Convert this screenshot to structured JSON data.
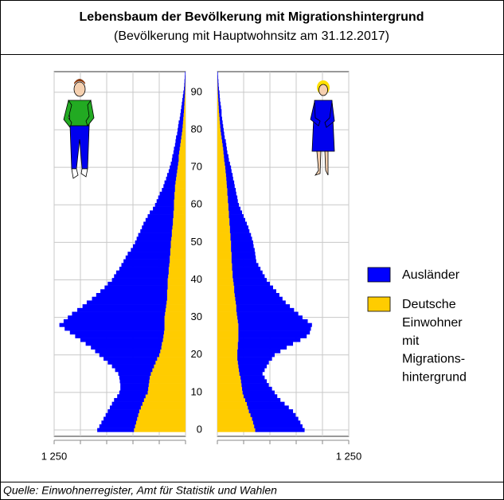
{
  "chart_data": {
    "type": "pyramid",
    "title": "Lebensbaum der Bevölkerung mit Migrationshintergrund",
    "subtitle": "(Bevölkerung mit Hauptwohnsitz am 31.12.2017)",
    "source": "Quelle: Einwohnerregister, Amt für Statistik und Wahlen",
    "y": [
      0,
      1,
      2,
      3,
      4,
      5,
      6,
      7,
      8,
      9,
      10,
      11,
      12,
      13,
      14,
      15,
      16,
      17,
      18,
      19,
      20,
      21,
      22,
      23,
      24,
      25,
      26,
      27,
      28,
      29,
      30,
      31,
      32,
      33,
      34,
      35,
      36,
      37,
      38,
      39,
      40,
      41,
      42,
      43,
      44,
      45,
      46,
      47,
      48,
      49,
      50,
      51,
      52,
      53,
      54,
      55,
      56,
      57,
      58,
      59,
      60,
      61,
      62,
      63,
      64,
      65,
      66,
      67,
      68,
      69,
      70,
      71,
      72,
      73,
      74,
      75,
      76,
      77,
      78,
      79,
      80,
      81,
      82,
      83,
      84,
      85,
      86,
      87,
      88,
      89,
      90,
      91,
      92,
      93,
      94,
      95
    ],
    "ylim": [
      -1.7,
      95.5
    ],
    "yticks": [
      0,
      10,
      20,
      30,
      40,
      50,
      60,
      70,
      80,
      90
    ],
    "xlim": [
      0,
      1250
    ],
    "xgrid": [
      0,
      250,
      500,
      750,
      1000,
      1250
    ],
    "xticks": [
      {
        "value": 1250,
        "label": "1 250"
      }
    ],
    "series": [
      {
        "name": "Ausländer",
        "color": "#0000ff",
        "left": [
          350,
          340,
          330,
          320,
          310,
          300,
          295,
          290,
          285,
          270,
          270,
          265,
          270,
          280,
          290,
          310,
          355,
          400,
          455,
          510,
          570,
          620,
          670,
          725,
          785,
          840,
          895,
          950,
          1000,
          960,
          920,
          885,
          840,
          795,
          760,
          715,
          675,
          635,
          600,
          570,
          530,
          515,
          500,
          470,
          455,
          440,
          420,
          405,
          375,
          360,
          340,
          330,
          320,
          300,
          290,
          280,
          260,
          245,
          225,
          200,
          180,
          165,
          155,
          140,
          125,
          110,
          105,
          95,
          90,
          80,
          75,
          70,
          65,
          60,
          55,
          55,
          50,
          50,
          50,
          45,
          45,
          43,
          41,
          34,
          32,
          30,
          27,
          24,
          21,
          18,
          15,
          11,
          9,
          8,
          6,
          5
        ],
        "right": [
          470,
          460,
          450,
          440,
          430,
          420,
          390,
          360,
          335,
          320,
          305,
          285,
          260,
          245,
          230,
          220,
          245,
          270,
          295,
          330,
          355,
          410,
          465,
          525,
          590,
          650,
          680,
          690,
          700,
          665,
          620,
          585,
          550,
          510,
          475,
          450,
          425,
          400,
          370,
          345,
          320,
          305,
          285,
          270,
          250,
          235,
          230,
          225,
          225,
          215,
          210,
          205,
          195,
          185,
          175,
          165,
          150,
          140,
          125,
          115,
          100,
          95,
          90,
          85,
          80,
          75,
          72,
          65,
          63,
          57,
          55,
          50,
          45,
          43,
          37,
          35,
          35,
          35,
          30,
          30,
          30,
          28,
          26,
          24,
          22,
          25,
          22,
          19,
          16,
          15,
          15,
          11,
          9,
          8,
          6,
          5
        ]
      },
      {
        "name": [
          "Deutsche",
          "Einwohner",
          "mit",
          "Migrations-",
          "hintergrund"
        ],
        "color": "#ffcc00",
        "left": [
          490,
          480,
          470,
          460,
          450,
          440,
          425,
          410,
          395,
          380,
          360,
          355,
          350,
          345,
          340,
          330,
          315,
          300,
          285,
          270,
          250,
          240,
          230,
          225,
          215,
          210,
          205,
          200,
          200,
          200,
          200,
          195,
          190,
          185,
          180,
          175,
          175,
          175,
          170,
          170,
          170,
          165,
          160,
          160,
          155,
          150,
          150,
          145,
          145,
          140,
          140,
          135,
          130,
          130,
          125,
          120,
          120,
          115,
          115,
          110,
          110,
          110,
          105,
          105,
          100,
          100,
          95,
          90,
          85,
          80,
          75,
          70,
          65,
          65,
          60,
          55,
          50,
          45,
          40,
          35,
          30,
          27,
          24,
          21,
          18,
          15,
          13,
          11,
          9,
          7,
          5,
          4,
          3,
          2,
          1,
          0
        ],
        "right": [
          360,
          350,
          340,
          330,
          315,
          300,
          290,
          280,
          265,
          250,
          240,
          235,
          230,
          225,
          220,
          210,
          205,
          200,
          195,
          190,
          190,
          190,
          195,
          195,
          200,
          200,
          200,
          200,
          200,
          195,
          190,
          185,
          180,
          180,
          175,
          170,
          165,
          160,
          160,
          155,
          150,
          145,
          145,
          140,
          140,
          135,
          135,
          135,
          130,
          130,
          130,
          125,
          125,
          120,
          120,
          115,
          115,
          110,
          110,
          105,
          105,
          100,
          100,
          95,
          95,
          90,
          88,
          85,
          82,
          78,
          75,
          70,
          65,
          62,
          58,
          55,
          50,
          45,
          40,
          35,
          30,
          27,
          24,
          21,
          18,
          15,
          13,
          11,
          9,
          7,
          5,
          4,
          3,
          2,
          1,
          0
        ]
      }
    ],
    "grid": true
  }
}
